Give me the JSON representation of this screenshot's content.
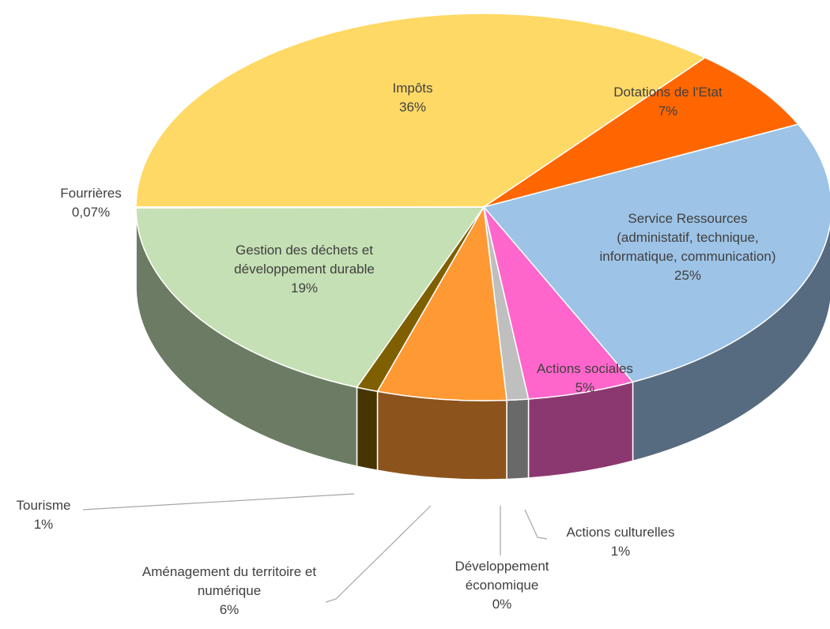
{
  "chart_data": {
    "type": "pie3d",
    "categories": [
      "Impôts",
      "Dotations de l'Etat",
      "Service Ressources (administatif, technique, informatique, communication)",
      "Actions sociales",
      "Actions culturelles",
      "Développement économique",
      "Aménagement du territoire et numérique",
      "Tourisme",
      "Gestion des déchets et développement durable",
      "Fourrières"
    ],
    "values": [
      36,
      7,
      25,
      5,
      1,
      0,
      6,
      1,
      19,
      0.07
    ],
    "value_labels": [
      "36%",
      "7%",
      "25%",
      "5%",
      "1%",
      "0%",
      "6%",
      "1%",
      "19%",
      "0,07%"
    ],
    "colors": [
      "#ffd966",
      "#ff6600",
      "#9dc3e6",
      "#ff66cc",
      "#bfbfbf",
      "#7b007b",
      "#ff9933",
      "#7f6000",
      "#c5e0b4",
      "#5b9bd5"
    ]
  }
}
